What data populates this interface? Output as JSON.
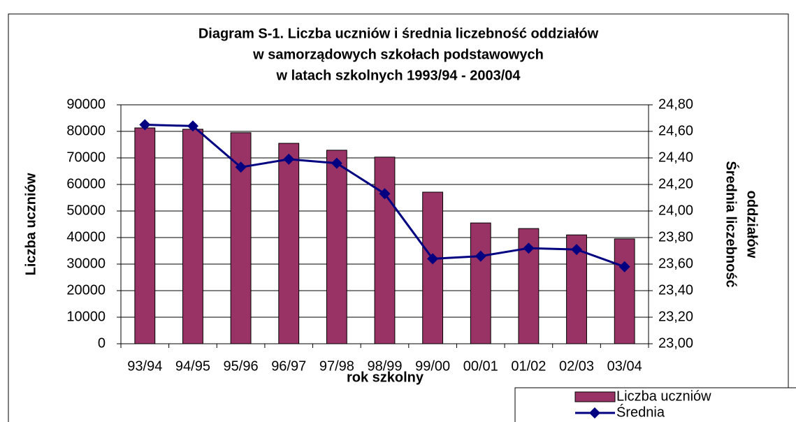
{
  "chart_data": {
    "type": "bar-line",
    "title": [
      "Diagram S-1. Liczba uczniów i średnia liczebność oddziałów",
      "w samorządowych szkołach podstawowych",
      "w latach szkolnych 1993/94 - 2003/04"
    ],
    "xlabel": "rok szkolny",
    "ylabel": "Liczba uczniów",
    "y2label": [
      "Średnia liczebność",
      "oddziałów"
    ],
    "categories": [
      "93/94",
      "94/95",
      "95/96",
      "96/97",
      "97/98",
      "98/99",
      "99/00",
      "00/01",
      "01/02",
      "02/03",
      "03/04"
    ],
    "series": [
      {
        "name": "Liczba uczniów",
        "type": "bar",
        "color": "#993366",
        "values": [
          81300,
          80800,
          79500,
          75500,
          72900,
          70300,
          57100,
          45500,
          43400,
          41000,
          39500
        ]
      },
      {
        "name": "Średnia",
        "type": "line",
        "axis": "y2",
        "color": "#000080",
        "values": [
          24.65,
          24.64,
          24.33,
          24.39,
          24.36,
          24.13,
          23.64,
          23.66,
          23.72,
          23.71,
          23.58
        ]
      }
    ],
    "ylim": [
      0,
      90000
    ],
    "yticks": [
      0,
      10000,
      20000,
      30000,
      40000,
      50000,
      60000,
      70000,
      80000,
      90000
    ],
    "y2lim": [
      23.0,
      24.8
    ],
    "y2ticks": [
      {
        "value": 23.0,
        "label": "23,00"
      },
      {
        "value": 23.2,
        "label": "23,20"
      },
      {
        "value": 23.4,
        "label": "23,40"
      },
      {
        "value": 23.6,
        "label": "23,60"
      },
      {
        "value": 23.8,
        "label": "23,80"
      },
      {
        "value": 24.0,
        "label": "24,00"
      },
      {
        "value": 24.2,
        "label": "24,20"
      },
      {
        "value": 24.4,
        "label": "24,40"
      },
      {
        "value": 24.6,
        "label": "24,60"
      },
      {
        "value": 24.8,
        "label": "24,80"
      }
    ],
    "grid": true,
    "legend": "bottom-right"
  }
}
